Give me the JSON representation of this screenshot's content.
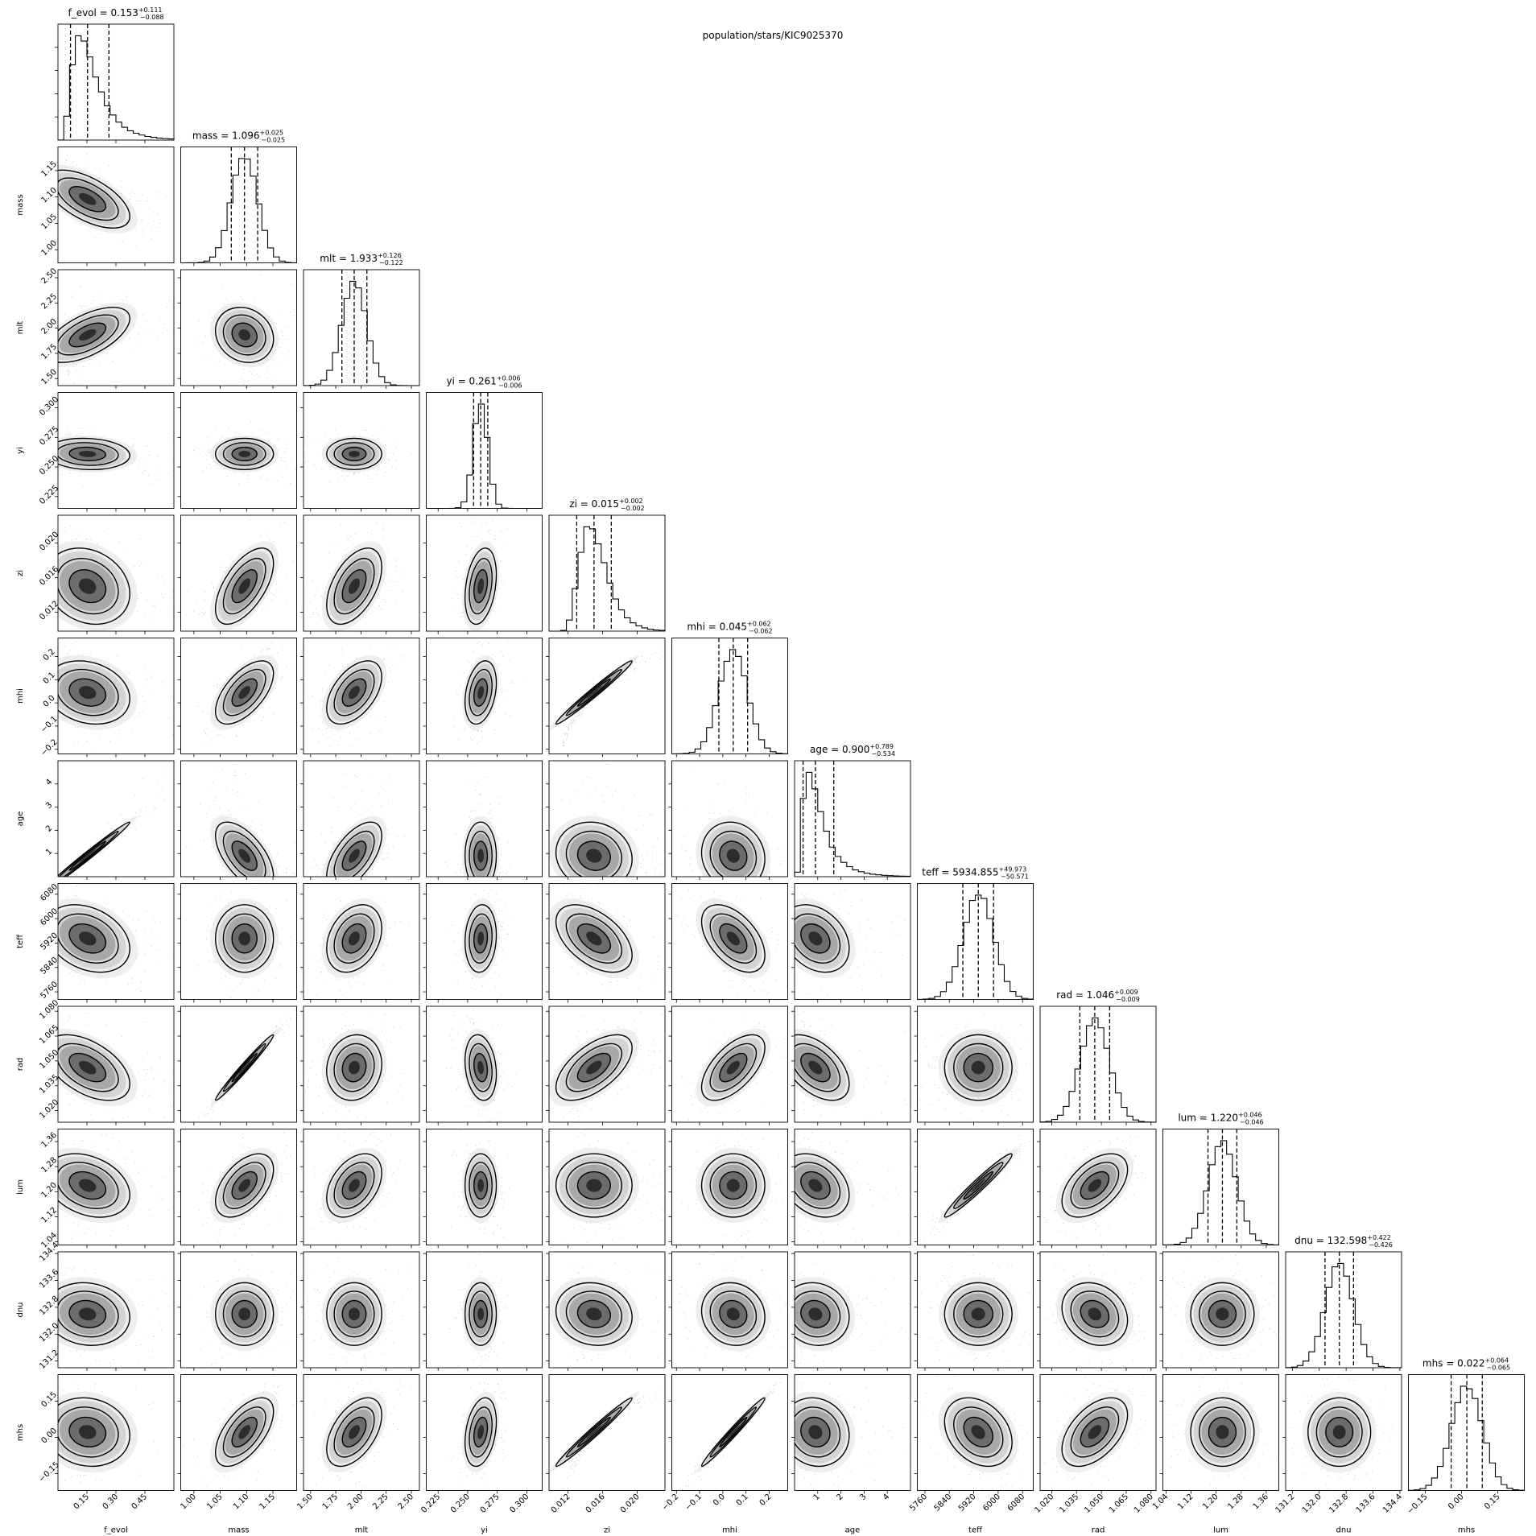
{
  "suptitle": "population/stars/KIC9025370",
  "colors": {
    "ink": "#000000",
    "background": "#ffffff",
    "density_dark": "#202020",
    "density_light": "#f2f2f2"
  },
  "chart_data": {
    "type": "corner",
    "parameters": [
      {
        "name": "f_evol",
        "label": "f_evol",
        "median": "0.153",
        "plus": "+0.111",
        "minus": "−0.088",
        "median_value": 0.153,
        "plus_value": 0.111,
        "minus_value": 0.088,
        "range": [
          0.0,
          0.6
        ],
        "ticks": [
          0.15,
          0.3,
          0.45
        ],
        "tick_labels": [
          "0.15",
          "0.30",
          "0.45"
        ],
        "skew": 1.8
      },
      {
        "name": "mass",
        "label": "mass",
        "median": "1.096",
        "plus": "+0.025",
        "minus": "−0.025",
        "median_value": 1.096,
        "plus_value": 0.025,
        "minus_value": 0.025,
        "range": [
          0.975,
          1.195
        ],
        "ticks": [
          1.0,
          1.05,
          1.1,
          1.15
        ],
        "tick_labels": [
          "1.00",
          "1.05",
          "1.10",
          "1.15"
        ],
        "skew": 0
      },
      {
        "name": "mlt",
        "label": "mlt",
        "median": "1.933",
        "plus": "+0.126",
        "minus": "−0.122",
        "median_value": 1.933,
        "plus_value": 0.126,
        "minus_value": 0.122,
        "range": [
          1.43,
          2.58
        ],
        "ticks": [
          1.5,
          1.75,
          2.0,
          2.25,
          2.5
        ],
        "tick_labels": [
          "1.50",
          "1.75",
          "2.00",
          "2.25",
          "2.50"
        ],
        "skew": 0
      },
      {
        "name": "yi",
        "label": "yi",
        "median": "0.261",
        "plus": "+0.006",
        "minus": "−0.006",
        "median_value": 0.261,
        "plus_value": 0.006,
        "minus_value": 0.006,
        "range": [
          0.215,
          0.313
        ],
        "ticks": [
          0.225,
          0.25,
          0.275,
          0.3
        ],
        "tick_labels": [
          "0.225",
          "0.250",
          "0.275",
          "0.300"
        ],
        "skew": 0
      },
      {
        "name": "zi",
        "label": "zi",
        "median": "0.015",
        "plus": "+0.002",
        "minus": "−0.002",
        "median_value": 0.015,
        "plus_value": 0.002,
        "minus_value": 0.002,
        "range": [
          0.0098,
          0.0232
        ],
        "ticks": [
          0.012,
          0.016,
          0.02
        ],
        "tick_labels": [
          "0.012",
          "0.016",
          "0.020"
        ],
        "skew": 0.3
      },
      {
        "name": "mhi",
        "label": "mhi",
        "median": "0.045",
        "plus": "+0.062",
        "minus": "−0.062",
        "median_value": 0.045,
        "plus_value": 0.062,
        "minus_value": 0.062,
        "range": [
          -0.22,
          0.28
        ],
        "ticks": [
          -0.2,
          -0.1,
          0.0,
          0.1,
          0.2
        ],
        "tick_labels": [
          "−0.2",
          "−0.1",
          "0.0",
          "0.1",
          "0.2"
        ],
        "skew": 0
      },
      {
        "name": "age",
        "label": "age",
        "median": "0.900",
        "plus": "+0.789",
        "minus": "−0.534",
        "median_value": 0.9,
        "plus_value": 0.789,
        "minus_value": 0.534,
        "range": [
          0.0,
          5.0
        ],
        "ticks": [
          1,
          2,
          3,
          4
        ],
        "tick_labels": [
          "1",
          "2",
          "3",
          "4"
        ],
        "skew": 1.5
      },
      {
        "name": "teff",
        "label": "teff",
        "median": "5934.855",
        "plus": "+49.973",
        "minus": "−50.571",
        "median_value": 5934.855,
        "plus_value": 49.973,
        "minus_value": 50.571,
        "range": [
          5735,
          6115
        ],
        "ticks": [
          5760,
          5840,
          5920,
          6000,
          6080
        ],
        "tick_labels": [
          "5760",
          "5840",
          "5920",
          "6000",
          "6080"
        ],
        "skew": 0
      },
      {
        "name": "rad",
        "label": "rad",
        "median": "1.046",
        "plus": "+0.009",
        "minus": "−0.009",
        "median_value": 1.046,
        "plus_value": 0.009,
        "minus_value": 0.009,
        "range": [
          1.013,
          1.083
        ],
        "ticks": [
          1.02,
          1.035,
          1.05,
          1.065,
          1.08
        ],
        "tick_labels": [
          "1.020",
          "1.035",
          "1.050",
          "1.065",
          "1.080"
        ],
        "skew": 0
      },
      {
        "name": "lum",
        "label": "lum",
        "median": "1.220",
        "plus": "+0.046",
        "minus": "−0.046",
        "median_value": 1.22,
        "plus_value": 0.046,
        "minus_value": 0.046,
        "range": [
          1.03,
          1.4
        ],
        "ticks": [
          1.04,
          1.12,
          1.2,
          1.28,
          1.36
        ],
        "tick_labels": [
          "1.04",
          "1.12",
          "1.20",
          "1.28",
          "1.36"
        ],
        "skew": 0
      },
      {
        "name": "dnu",
        "label": "dnu",
        "median": "132.598",
        "plus": "+0.422",
        "minus": "−0.426",
        "median_value": 132.598,
        "plus_value": 0.422,
        "minus_value": 0.426,
        "range": [
          131.0,
          134.45
        ],
        "ticks": [
          131.2,
          132.0,
          132.8,
          133.6,
          134.4
        ],
        "tick_labels": [
          "131.2",
          "132.0",
          "132.8",
          "133.6",
          "134.4"
        ],
        "skew": 0
      },
      {
        "name": "mhs",
        "label": "mhs",
        "median": "0.022",
        "plus": "+0.064",
        "minus": "−0.065",
        "median_value": 0.022,
        "plus_value": 0.064,
        "minus_value": 0.065,
        "range": [
          -0.22,
          0.26
        ],
        "ticks": [
          -0.15,
          0.0,
          0.15
        ],
        "tick_labels": [
          "−0.15",
          "0.00",
          "0.15"
        ],
        "skew": 0
      }
    ],
    "correlations": [
      [
        1
      ],
      [
        -0.6,
        1
      ],
      [
        0.6,
        -0.15,
        1
      ],
      [
        -0.1,
        0.0,
        0.0,
        1
      ],
      [
        -0.2,
        0.6,
        0.5,
        0.3,
        1
      ],
      [
        -0.2,
        0.6,
        0.5,
        0.3,
        0.985,
        1
      ],
      [
        0.99,
        -0.6,
        0.6,
        0.0,
        -0.1,
        -0.1,
        1
      ],
      [
        -0.3,
        0.0,
        0.3,
        0.1,
        -0.5,
        -0.5,
        -0.3,
        1
      ],
      [
        -0.5,
        0.985,
        0.1,
        -0.2,
        0.6,
        0.6,
        -0.5,
        0.0,
        1
      ],
      [
        -0.3,
        0.5,
        0.4,
        0.0,
        0.0,
        0.0,
        -0.3,
        0.97,
        0.5,
        1
      ],
      [
        -0.1,
        0.0,
        0.0,
        0.0,
        -0.1,
        -0.1,
        -0.1,
        0.0,
        -0.2,
        0.0,
        1
      ],
      [
        -0.1,
        0.6,
        0.5,
        0.3,
        0.985,
        0.985,
        -0.1,
        -0.3,
        0.5,
        0.0,
        0.0,
        1
      ]
    ],
    "quantile_lines": [
      "16%",
      "50%",
      "84%"
    ],
    "contour_levels": 3,
    "grid": false
  }
}
